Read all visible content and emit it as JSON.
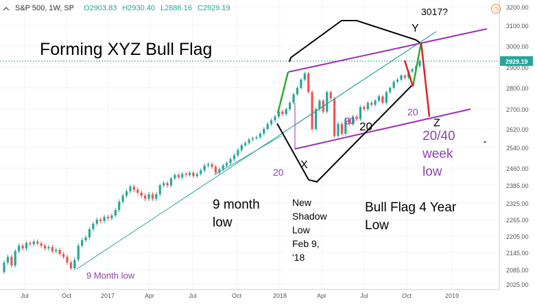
{
  "header": {
    "symbol": "S&P 500, 1W, SP",
    "open": "O2903.83",
    "high": "H2930.40",
    "low": "L2886.16",
    "close": "C2929.19",
    "last_price_tag": "2929.19"
  },
  "colors": {
    "up": "#26a69a",
    "down": "#ef5350",
    "purple": "#9b30b5",
    "black": "#000000",
    "green": "#2eaa2e",
    "red": "#e02020",
    "trend": "#2aa198",
    "label_purple": "#8e44ad"
  },
  "chart_data": {
    "type": "candlestick",
    "title": "Forming XYZ Bull Flag",
    "ylim": [
      2025,
      3215
    ],
    "y_ticks": [
      "3200.00",
      "3100.00",
      "3000.00",
      "2900.00",
      "2800.00",
      "2700.00",
      "2620.00",
      "2540.00",
      "2460.00",
      "2385.00",
      "2325.00",
      "2265.00",
      "2205.00",
      "2145.00",
      "2085.00",
      "2025.00"
    ],
    "x_ticks": [
      "Jul",
      "Oct",
      "2017",
      "Apr",
      "Jul",
      "Oct",
      "2018",
      "Apr",
      "Jul",
      "Oct",
      "2019"
    ],
    "series": [
      {
        "name": "",
        "points": [
          [
            2016.45,
            2075,
            2110
          ],
          [
            2016.47,
            2110,
            2130
          ],
          [
            2016.49,
            2130,
            2100
          ],
          [
            2016.51,
            2100,
            2150
          ],
          [
            2016.53,
            2150,
            2170
          ],
          [
            2016.55,
            2170,
            2160
          ],
          [
            2016.57,
            2160,
            2180
          ],
          [
            2016.59,
            2180,
            2175
          ],
          [
            2016.61,
            2175,
            2185
          ],
          [
            2016.63,
            2185,
            2178
          ],
          [
            2016.65,
            2178,
            2170
          ],
          [
            2016.67,
            2170,
            2160
          ],
          [
            2016.69,
            2160,
            2165
          ],
          [
            2016.71,
            2165,
            2150
          ],
          [
            2016.73,
            2150,
            2155
          ],
          [
            2016.75,
            2155,
            2140
          ],
          [
            2016.77,
            2140,
            2130
          ],
          [
            2016.79,
            2130,
            2110
          ],
          [
            2016.81,
            2110,
            2090
          ],
          [
            2016.83,
            2090,
            2120
          ],
          [
            2016.85,
            2120,
            2170
          ],
          [
            2016.87,
            2170,
            2190
          ],
          [
            2016.89,
            2190,
            2200
          ],
          [
            2016.91,
            2200,
            2230
          ],
          [
            2016.93,
            2230,
            2250
          ],
          [
            2016.95,
            2250,
            2265
          ],
          [
            2016.97,
            2265,
            2260
          ],
          [
            2016.99,
            2260,
            2275
          ],
          [
            2017.01,
            2275,
            2270
          ],
          [
            2017.03,
            2270,
            2280
          ],
          [
            2017.05,
            2280,
            2300
          ],
          [
            2017.07,
            2300,
            2330
          ],
          [
            2017.09,
            2330,
            2350
          ],
          [
            2017.11,
            2350,
            2365
          ],
          [
            2017.13,
            2365,
            2380
          ],
          [
            2017.15,
            2380,
            2370
          ],
          [
            2017.17,
            2370,
            2360
          ],
          [
            2017.19,
            2360,
            2350
          ],
          [
            2017.21,
            2350,
            2340
          ],
          [
            2017.23,
            2340,
            2355
          ],
          [
            2017.25,
            2355,
            2340
          ],
          [
            2017.27,
            2340,
            2355
          ],
          [
            2017.29,
            2355,
            2385
          ],
          [
            2017.31,
            2385,
            2395
          ],
          [
            2017.33,
            2395,
            2385
          ],
          [
            2017.35,
            2385,
            2415
          ],
          [
            2017.37,
            2415,
            2430
          ],
          [
            2017.39,
            2430,
            2420
          ],
          [
            2017.41,
            2420,
            2435
          ],
          [
            2017.43,
            2435,
            2430
          ],
          [
            2017.45,
            2430,
            2440
          ],
          [
            2017.47,
            2440,
            2425
          ],
          [
            2017.49,
            2425,
            2435
          ],
          [
            2017.51,
            2435,
            2450
          ],
          [
            2017.53,
            2450,
            2470
          ],
          [
            2017.55,
            2470,
            2475
          ],
          [
            2017.57,
            2475,
            2465
          ],
          [
            2017.59,
            2465,
            2440
          ],
          [
            2017.61,
            2440,
            2455
          ],
          [
            2017.63,
            2455,
            2470
          ],
          [
            2017.65,
            2470,
            2480
          ],
          [
            2017.67,
            2480,
            2495
          ],
          [
            2017.69,
            2495,
            2510
          ],
          [
            2017.71,
            2510,
            2530
          ],
          [
            2017.73,
            2530,
            2550
          ],
          [
            2017.75,
            2550,
            2560
          ],
          [
            2017.77,
            2560,
            2575
          ],
          [
            2017.79,
            2575,
            2580
          ],
          [
            2017.81,
            2580,
            2585
          ],
          [
            2017.83,
            2585,
            2600
          ],
          [
            2017.85,
            2600,
            2620
          ],
          [
            2017.87,
            2620,
            2640
          ],
          [
            2017.89,
            2640,
            2655
          ],
          [
            2017.91,
            2655,
            2670
          ],
          [
            2017.93,
            2670,
            2690
          ],
          [
            2017.95,
            2690,
            2680
          ],
          [
            2017.97,
            2680,
            2700
          ],
          [
            2017.99,
            2700,
            2730
          ],
          [
            2018.01,
            2730,
            2770
          ],
          [
            2018.03,
            2770,
            2800
          ],
          [
            2018.05,
            2800,
            2840
          ],
          [
            2018.07,
            2840,
            2870
          ],
          [
            2018.09,
            2870,
            2780
          ],
          [
            2018.11,
            2780,
            2620
          ],
          [
            2018.13,
            2620,
            2700
          ],
          [
            2018.15,
            2700,
            2740
          ],
          [
            2018.17,
            2740,
            2690
          ],
          [
            2018.19,
            2690,
            2780
          ],
          [
            2018.21,
            2780,
            2750
          ],
          [
            2018.23,
            2750,
            2590
          ],
          [
            2018.25,
            2590,
            2640
          ],
          [
            2018.27,
            2640,
            2600
          ],
          [
            2018.29,
            2600,
            2660
          ],
          [
            2018.31,
            2660,
            2640
          ],
          [
            2018.33,
            2640,
            2670
          ],
          [
            2018.35,
            2670,
            2660
          ],
          [
            2018.37,
            2660,
            2710
          ],
          [
            2018.39,
            2710,
            2700
          ],
          [
            2018.41,
            2700,
            2730
          ],
          [
            2018.43,
            2730,
            2720
          ],
          [
            2018.45,
            2720,
            2740
          ],
          [
            2018.47,
            2740,
            2760
          ],
          [
            2018.49,
            2760,
            2730
          ],
          [
            2018.51,
            2730,
            2780
          ],
          [
            2018.53,
            2780,
            2800
          ],
          [
            2018.55,
            2800,
            2830
          ],
          [
            2018.57,
            2830,
            2840
          ],
          [
            2018.59,
            2840,
            2860
          ],
          [
            2018.61,
            2860,
            2850
          ],
          [
            2018.63,
            2850,
            2880
          ],
          [
            2018.65,
            2880,
            2890
          ],
          [
            2018.67,
            2890,
            2905
          ],
          [
            2018.69,
            2905,
            2929
          ]
        ]
      }
    ],
    "annotations": {
      "title": "Forming XYZ Bull Flag",
      "target": "3017?",
      "y_label": "Y",
      "x_label": "X",
      "z_label": "Z",
      "nine_month_low_small": "9 Month low",
      "nine_month_low": [
        "9 month",
        "low"
      ],
      "shadow_low": [
        "New",
        "Shadow",
        "Low",
        "Feb 9,",
        "'18"
      ],
      "bull_flag": [
        "Bull Flag 4 Year",
        "Low"
      ],
      "week_low": [
        "20/40",
        "week",
        "low"
      ],
      "twenty_1": "20",
      "twenty_2": "20",
      "twenty_3": "20",
      "twenty_4": "20"
    }
  }
}
